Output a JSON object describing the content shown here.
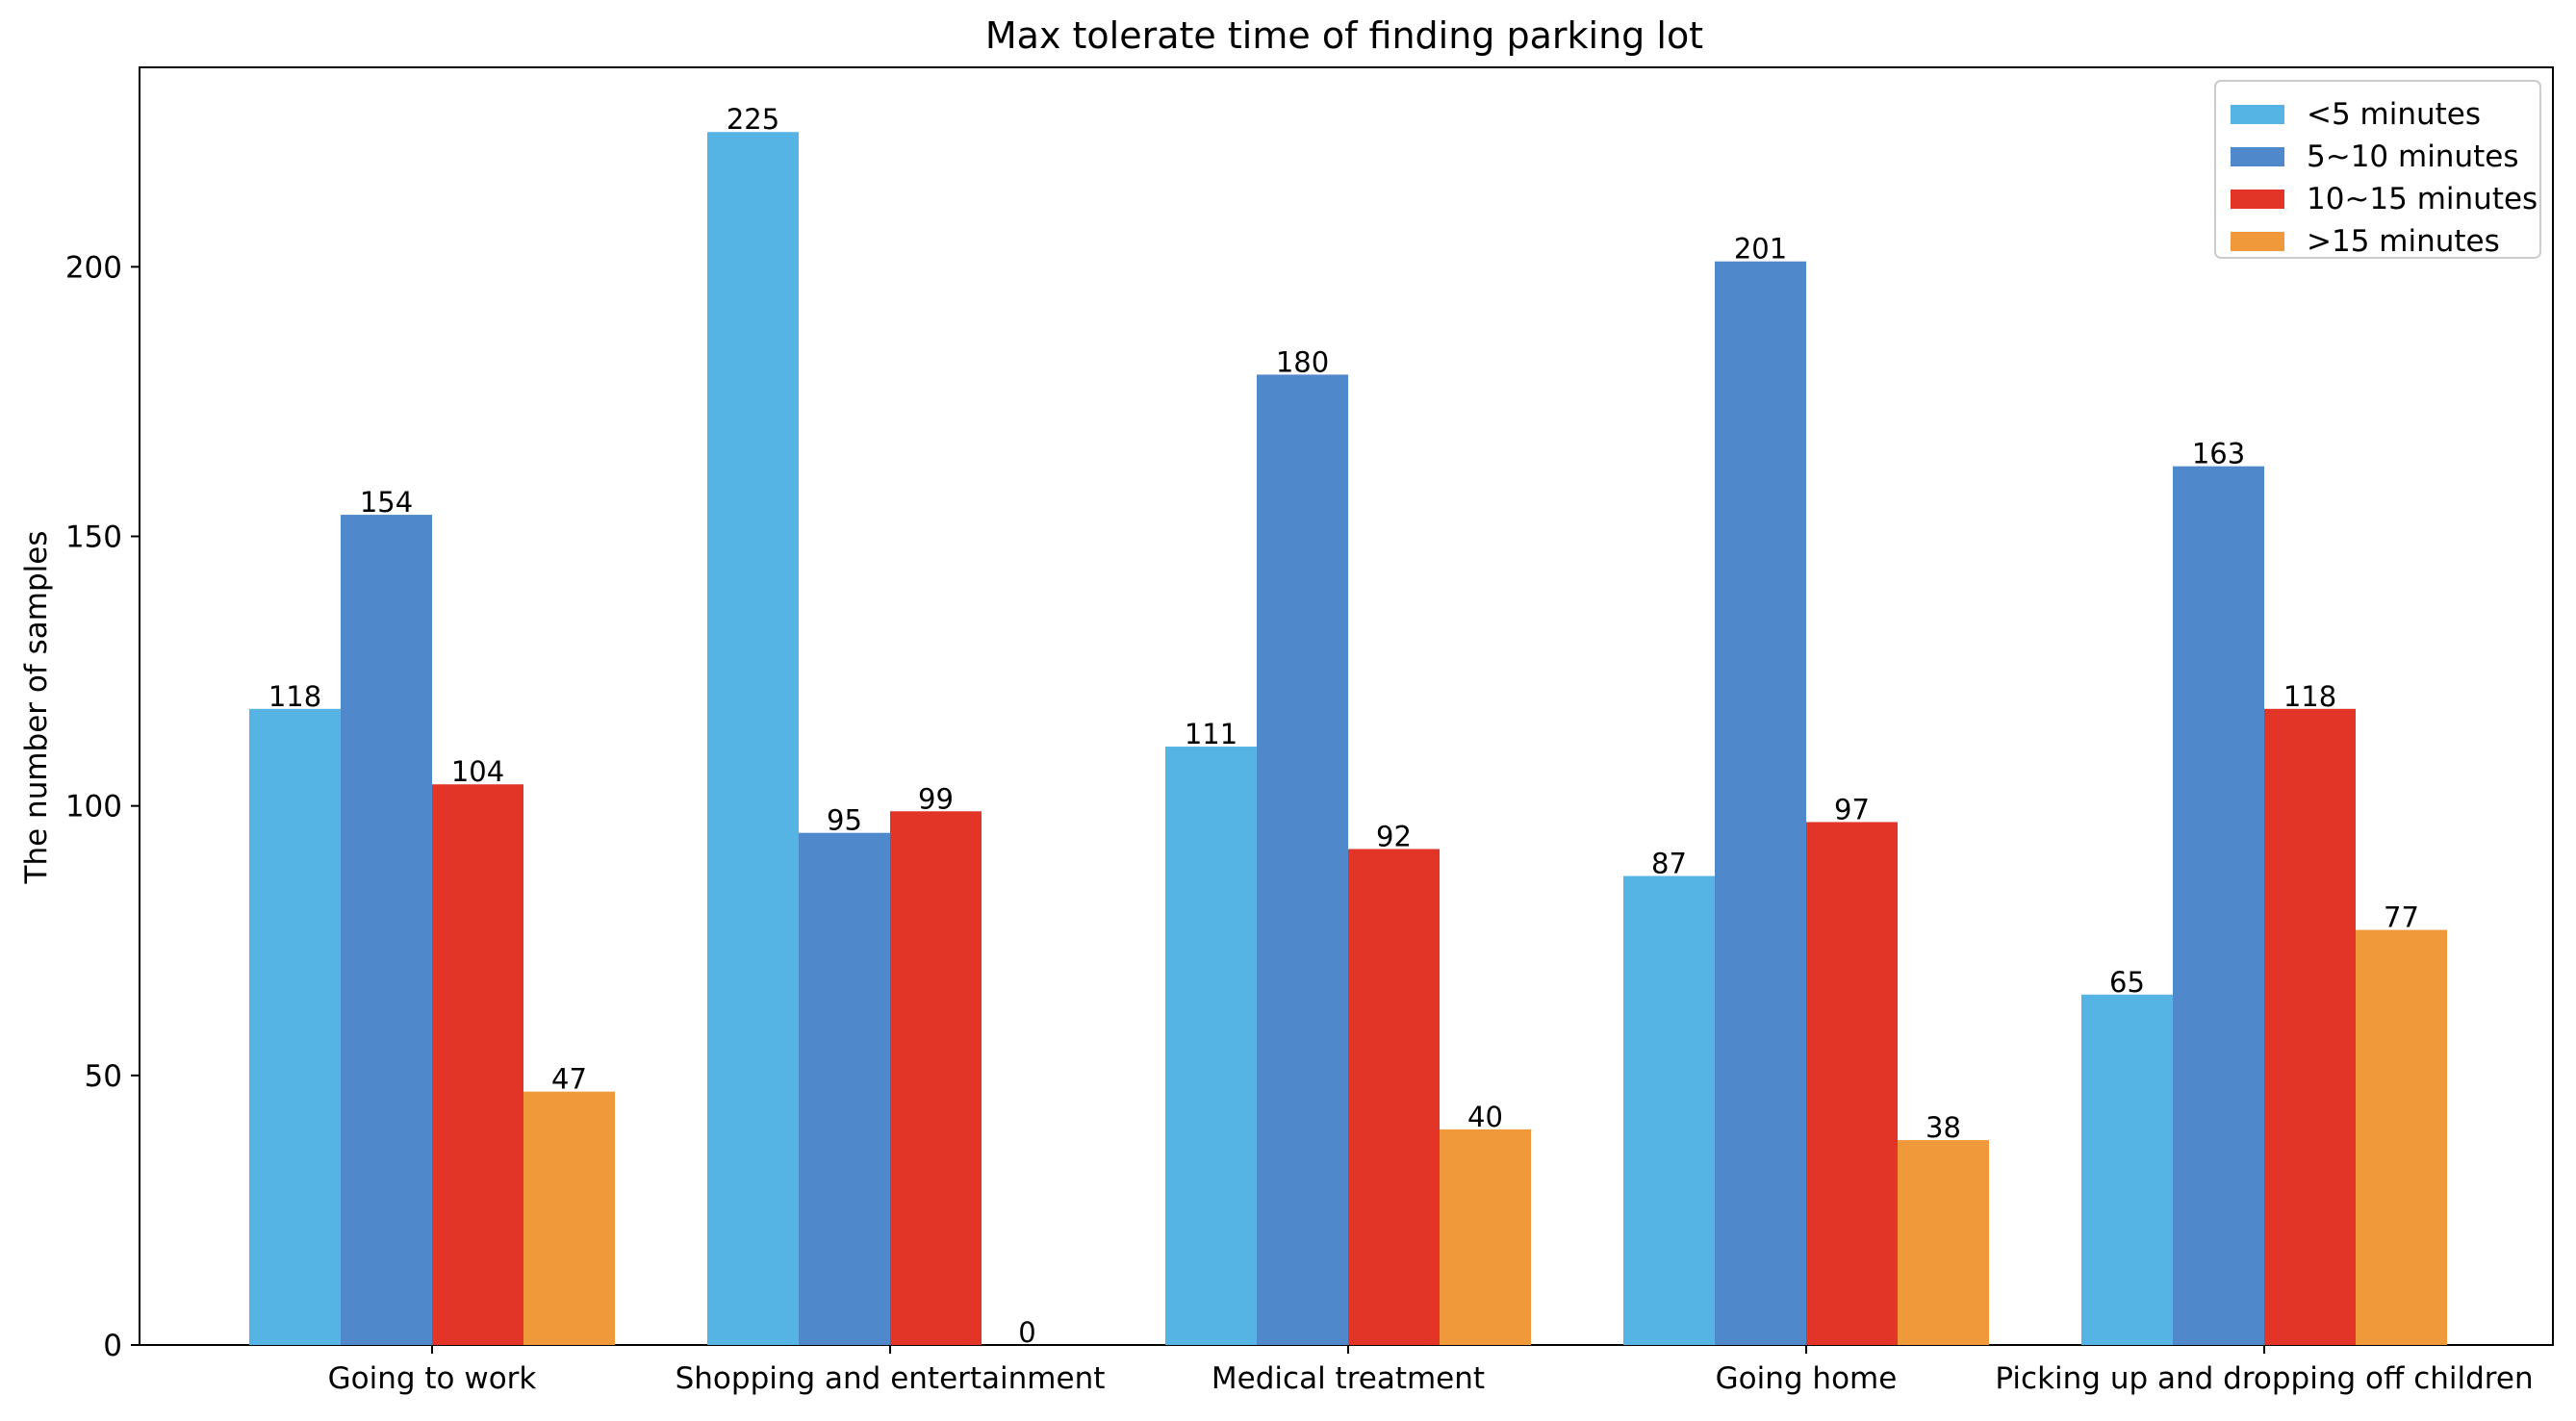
{
  "chart_data": {
    "type": "bar",
    "title": "Max tolerate time of finding parking lot",
    "xlabel": "",
    "ylabel": "The number of samples",
    "ylim": [
      0,
      237
    ],
    "yticks": [
      0,
      50,
      100,
      150,
      200
    ],
    "grid": false,
    "legend_position": "top-right",
    "categories": [
      "Going to work",
      "Shopping and entertainment",
      "Medical treatment",
      "Going home",
      "Picking up and dropping off children"
    ],
    "series": [
      {
        "name": "<5 minutes",
        "color": "#56B4E4",
        "values": [
          118,
          225,
          111,
          87,
          65
        ]
      },
      {
        "name": "5~10 minutes",
        "color": "#4F88CB",
        "values": [
          154,
          95,
          180,
          201,
          163
        ]
      },
      {
        "name": "10~15 minutes",
        "color": "#E23427",
        "values": [
          104,
          99,
          92,
          97,
          118
        ]
      },
      {
        "name": ">15 minutes",
        "color": "#F0993B",
        "values": [
          47,
          0,
          40,
          38,
          77
        ]
      }
    ]
  }
}
